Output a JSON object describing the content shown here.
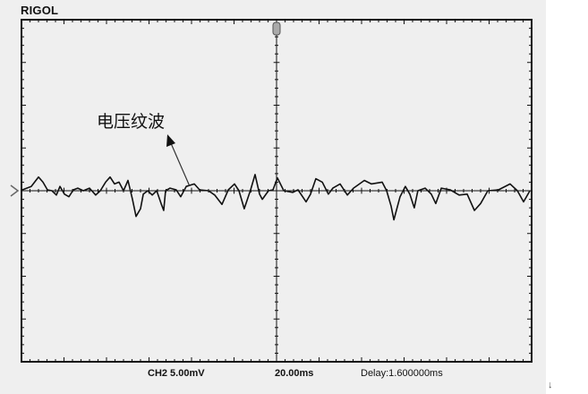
{
  "brand": "RIGOL",
  "annotation": "电压纹波",
  "footer": {
    "channel": "CH2 5.00mV",
    "timebase": "20.00ms",
    "delay": "Delay:1.600000ms"
  },
  "marker_glyph": "↓",
  "colors": {
    "background": "#efefef",
    "trace": "#111111",
    "frame": "#111111"
  },
  "icons": {
    "trigger": "trigger-position-icon",
    "ground": "channel-ground-marker-icon"
  },
  "chart_data": {
    "type": "line",
    "title": "",
    "xlabel": "",
    "ylabel": "",
    "x_unit": "ms",
    "y_unit": "mV",
    "xlim": [
      -120,
      120
    ],
    "ylim": [
      -20,
      20
    ],
    "x_divisions": 12,
    "y_divisions": 8,
    "grid": false,
    "series": [
      {
        "x": [
          -119.6,
          -115.4,
          -112.0,
          -109.9,
          -107.8,
          -105.7,
          -103.6,
          -101.9,
          -99.8,
          -97.7,
          -95.6,
          -93.5,
          -90.9,
          -88.0,
          -85.1,
          -82.9,
          -80.4,
          -78.3,
          -76.2,
          -74.1,
          -72.0,
          -69.9,
          -67.8,
          -66.1,
          -64.0,
          -62.7,
          -60.6,
          -58.5,
          -56.4,
          -54.3,
          -53.1,
          -52.2,
          -50.1,
          -47.2,
          -45.1,
          -42.5,
          -38.7,
          -36.2,
          -32.0,
          -29.1,
          -25.7,
          -22.7,
          -19.8,
          -17.7,
          -15.2,
          -12.2,
          -10.1,
          -8.0,
          -6.7,
          -3.8,
          -1.7,
          0.4,
          3.4,
          7.6,
          10.1,
          13.9,
          16.0,
          18.5,
          21.5,
          24.4,
          26.5,
          29.9,
          33.3,
          36.2,
          41.3,
          44.6,
          49.7,
          51.8,
          53.9,
          55.2,
          58.1,
          60.6,
          62.7,
          64.8,
          66.5,
          69.9,
          72.8,
          74.9,
          77.5,
          81.7,
          85.9,
          89.7,
          93.1,
          96.0,
          99.4,
          104.4,
          109.9,
          113.3,
          116.2,
          119.2
        ],
        "y": [
          0.1,
          0.5,
          1.6,
          1.0,
          0.1,
          0,
          -0.5,
          0.5,
          -0.4,
          -0.7,
          0.1,
          0.3,
          0,
          0.3,
          -0.5,
          0,
          1.0,
          1.6,
          0.8,
          1.0,
          0,
          1.2,
          -1.0,
          -3.0,
          -2.1,
          -0.4,
          0,
          -0.5,
          0,
          -1.5,
          -2.3,
          0,
          0.3,
          0.1,
          -0.7,
          0.5,
          0.8,
          0.1,
          0,
          -0.5,
          -1.6,
          0.1,
          0.8,
          0,
          -2.1,
          0.1,
          1.9,
          -0.4,
          -1.0,
          0,
          0.1,
          1.5,
          0,
          -0.2,
          0.1,
          -1.3,
          -0.4,
          1.4,
          1.0,
          -0.4,
          0.3,
          0.8,
          -0.5,
          0.3,
          1.2,
          0.8,
          1.0,
          0,
          -1.8,
          -3.4,
          -0.7,
          0.5,
          -0.4,
          -2.0,
          0,
          0.3,
          -0.4,
          -1.5,
          0.3,
          0.1,
          -0.5,
          -0.4,
          -2.3,
          -1.5,
          0,
          0.1,
          0.8,
          0,
          -1.3,
          0
        ]
      }
    ],
    "annotations": [
      {
        "text": "电压纹波",
        "arrow_to": {
          "x": -41,
          "y": 0.6
        }
      }
    ]
  }
}
